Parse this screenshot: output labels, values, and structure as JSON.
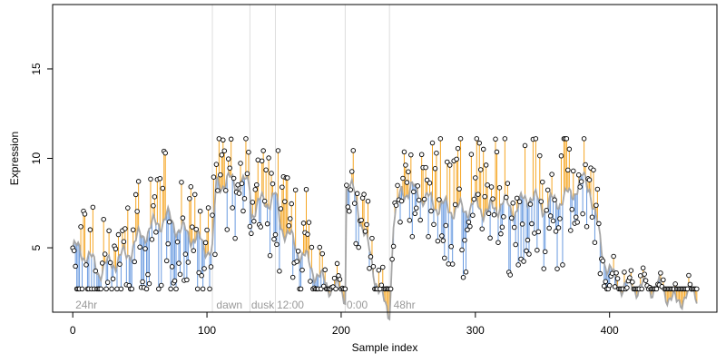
{
  "chart_data": {
    "type": "scatter",
    "title": "",
    "xlabel": "Sample index",
    "ylabel": "Expression",
    "xlim": [
      -15,
      480
    ],
    "ylim": [
      1.4,
      18.6
    ],
    "xticks": [
      0,
      100,
      200,
      300,
      400
    ],
    "yticks": [
      5,
      10,
      15
    ],
    "grid": false,
    "legend": "none",
    "colors": {
      "above": "#f5a623",
      "below": "#6a9be0",
      "smooth": "#a6a6a6",
      "divider": "#dddddd",
      "point_edge": "#000000",
      "region_text": "#9a9a9a"
    },
    "dividers": [
      104,
      132,
      151,
      203,
      236
    ],
    "regions": [
      {
        "label": "24hr",
        "x": 2
      },
      {
        "label": "dawn",
        "x": 107
      },
      {
        "label": "dusk",
        "x": 133
      },
      {
        "label": "12:00",
        "x": 152
      },
      {
        "label": "0:00",
        "x": 204
      },
      {
        "label": "48hr",
        "x": 239
      }
    ],
    "anchors": [
      [
        0,
        5.0
      ],
      [
        10,
        4.6
      ],
      [
        20,
        3.7
      ],
      [
        30,
        4.2
      ],
      [
        40,
        4.6
      ],
      [
        50,
        5.6
      ],
      [
        60,
        6.2
      ],
      [
        70,
        6.7
      ],
      [
        80,
        6.0
      ],
      [
        90,
        5.6
      ],
      [
        100,
        5.0
      ],
      [
        104,
        4.8
      ],
      [
        107,
        8.6
      ],
      [
        115,
        8.7
      ],
      [
        125,
        8.6
      ],
      [
        132,
        8.5
      ],
      [
        133,
        7.0
      ],
      [
        140,
        7.5
      ],
      [
        151,
        7.8
      ],
      [
        155,
        6.3
      ],
      [
        165,
        5.2
      ],
      [
        175,
        4.2
      ],
      [
        185,
        3.2
      ],
      [
        195,
        2.7
      ],
      [
        200,
        2.6
      ],
      [
        203,
        2.4
      ],
      [
        204,
        8.5
      ],
      [
        210,
        8.0
      ],
      [
        215,
        6.5
      ],
      [
        225,
        3.5
      ],
      [
        232,
        1.8
      ],
      [
        236,
        1.2
      ],
      [
        239,
        6.5
      ],
      [
        245,
        8.1
      ],
      [
        252,
        8.3
      ],
      [
        260,
        7.9
      ],
      [
        270,
        7.4
      ],
      [
        280,
        7.2
      ],
      [
        290,
        7.1
      ],
      [
        300,
        7.4
      ],
      [
        310,
        7.0
      ],
      [
        320,
        7.5
      ],
      [
        330,
        7.1
      ],
      [
        340,
        8.0
      ],
      [
        350,
        7.3
      ],
      [
        360,
        7.6
      ],
      [
        370,
        7.9
      ],
      [
        380,
        8.8
      ],
      [
        385,
        8.5
      ],
      [
        390,
        6.5
      ],
      [
        395,
        4.5
      ],
      [
        400,
        3.8
      ],
      [
        405,
        3.0
      ],
      [
        410,
        2.9
      ],
      [
        420,
        2.8
      ],
      [
        430,
        2.8
      ],
      [
        440,
        2.7
      ],
      [
        445,
        2.2
      ],
      [
        450,
        1.9
      ],
      [
        455,
        2.3
      ],
      [
        460,
        2.4
      ],
      [
        465,
        2.5
      ]
    ],
    "amplitude": [
      [
        0,
        1.5
      ],
      [
        10,
        3.5
      ],
      [
        30,
        1.5
      ],
      [
        50,
        2.5
      ],
      [
        70,
        3.0
      ],
      [
        90,
        3.0
      ],
      [
        104,
        2.5
      ],
      [
        132,
        1.8
      ],
      [
        151,
        2.5
      ],
      [
        170,
        3.2
      ],
      [
        185,
        1.2
      ],
      [
        203,
        0.4
      ],
      [
        210,
        2.2
      ],
      [
        225,
        1.5
      ],
      [
        236,
        0.7
      ],
      [
        239,
        2.0
      ],
      [
        260,
        2.8
      ],
      [
        300,
        3.0
      ],
      [
        340,
        2.8
      ],
      [
        380,
        2.5
      ],
      [
        395,
        1.5
      ],
      [
        405,
        0.6
      ],
      [
        430,
        0.5
      ],
      [
        465,
        0.4
      ]
    ],
    "n": 466
  }
}
